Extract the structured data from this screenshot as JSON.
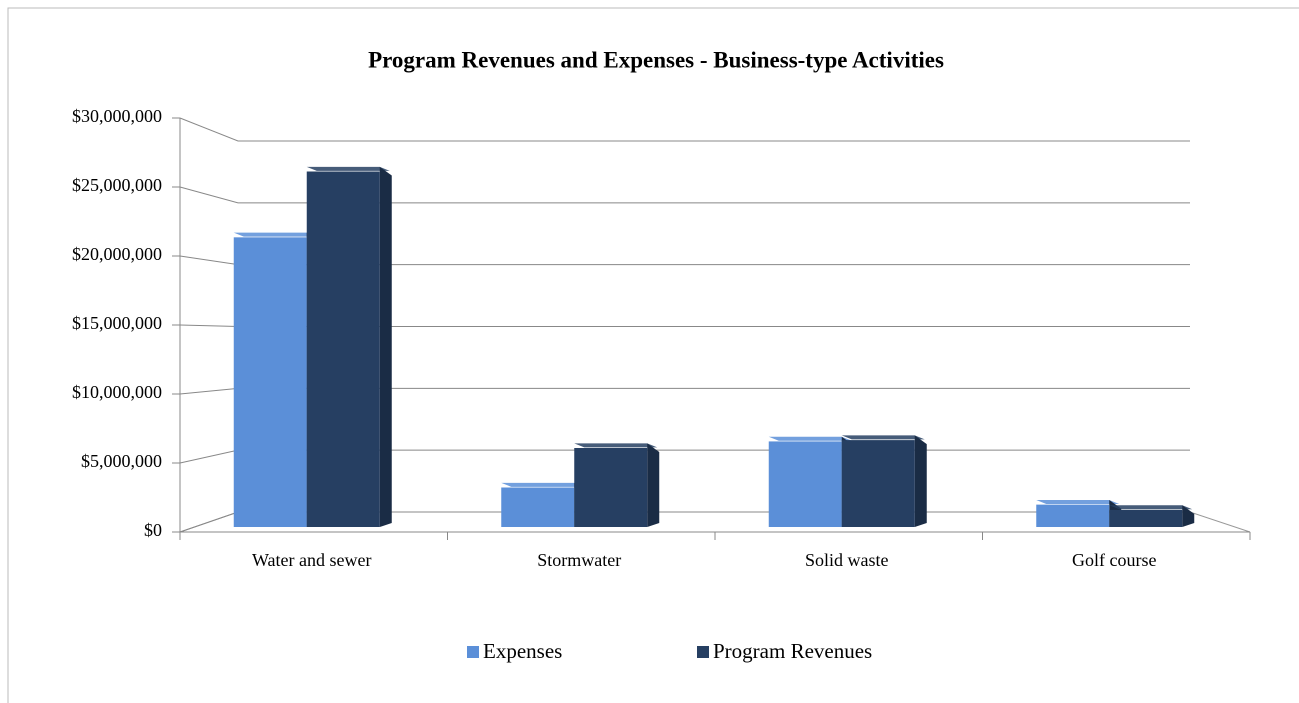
{
  "chart_data": {
    "type": "bar",
    "title": "Program Revenues and Expenses - Business-type Activities",
    "categories": [
      "Water and sewer",
      "Stormwater",
      "Solid waste",
      "Golf course"
    ],
    "series": [
      {
        "name": "Expenses",
        "color": "#5b8fd8",
        "values": [
          22000000,
          3000000,
          6500000,
          1700000
        ]
      },
      {
        "name": "Program Revenues",
        "color": "#263f62",
        "values": [
          27000000,
          6000000,
          6600000,
          1300000
        ]
      }
    ],
    "ylim": [
      0,
      30000000
    ],
    "yticks": [
      {
        "value": 0,
        "label": "$0"
      },
      {
        "value": 5000000,
        "label": "$5,000,000"
      },
      {
        "value": 10000000,
        "label": "$10,000,000"
      },
      {
        "value": 15000000,
        "label": "$15,000,000"
      },
      {
        "value": 20000000,
        "label": "$20,000,000"
      },
      {
        "value": 25000000,
        "label": "$25,000,000"
      },
      {
        "value": 30000000,
        "label": "$30,000,000"
      }
    ],
    "grid": true,
    "legend": "bottom"
  }
}
